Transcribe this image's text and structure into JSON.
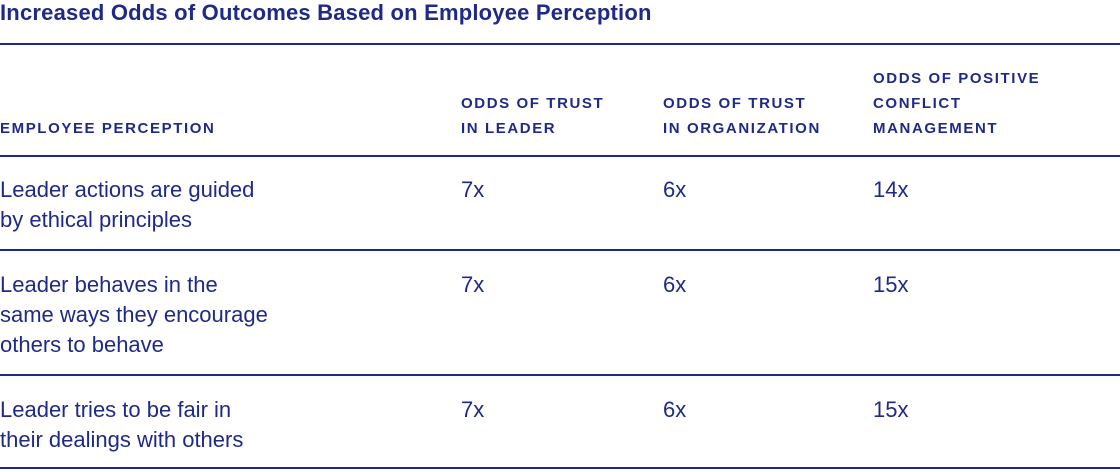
{
  "title": "Increased Odds of Outcomes Based on Employee Perception",
  "table": {
    "headers": [
      {
        "lines": [
          "EMPLOYEE PERCEPTION"
        ]
      },
      {
        "lines": [
          "ODDS OF TRUST",
          "IN LEADER"
        ]
      },
      {
        "lines": [
          "ODDS OF TRUST",
          "IN ORGANIZATION"
        ]
      },
      {
        "lines": [
          "ODDS OF POSITIVE",
          "CONFLICT",
          "MANAGEMENT"
        ]
      }
    ],
    "rows": [
      {
        "perception_lines": [
          "Leader actions are guided",
          "by ethical principles"
        ],
        "trust_leader": "7x",
        "trust_org": "6x",
        "conflict": "14x"
      },
      {
        "perception_lines": [
          "Leader behaves in the",
          "same ways they encourage",
          "others to behave"
        ],
        "trust_leader": "7x",
        "trust_org": "6x",
        "conflict": "15x"
      },
      {
        "perception_lines": [
          "Leader tries to be fair in",
          "their dealings with others"
        ],
        "trust_leader": "7x",
        "trust_org": "6x",
        "conflict": "15x"
      }
    ]
  }
}
